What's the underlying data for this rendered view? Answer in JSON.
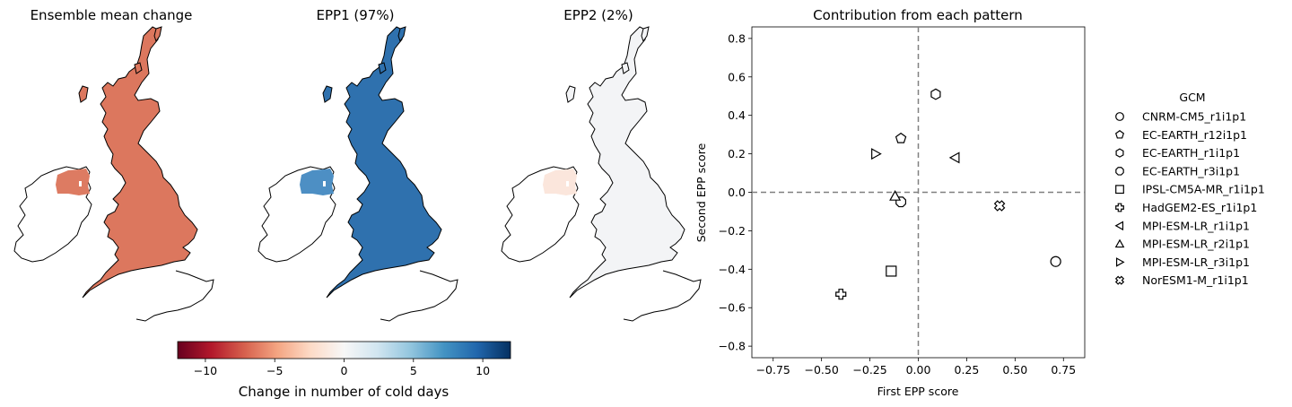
{
  "maps": [
    {
      "title": "Ensemble mean change",
      "ni_fill": "#dd7b62",
      "gb_fill": "#dc775e"
    },
    {
      "title": "EPP1 (97%)",
      "ni_fill": "#4d8fc4",
      "gb_fill": "#2f71ae"
    },
    {
      "title": "EPP2 (2%)",
      "ni_fill": "#fbe6dc",
      "gb_fill": "#f3f4f6"
    }
  ],
  "colorbar": {
    "label": "Change in number of cold days",
    "min": -12,
    "max": 12,
    "ticks": [
      -10,
      -5,
      0,
      5,
      10
    ],
    "tick_labels": [
      "−10",
      "−5",
      "0",
      "5",
      "10"
    ],
    "colormap": "RdBu",
    "stops": [
      "#67001f",
      "#b2182b",
      "#d6604d",
      "#f4a582",
      "#fddbc7",
      "#f7f7f7",
      "#d1e5f0",
      "#92c5de",
      "#4393c3",
      "#2166ac",
      "#053061"
    ]
  },
  "chart_data": {
    "type": "scatter",
    "title": "Contribution from each pattern",
    "xlabel": "First EPP score",
    "ylabel": "Second EPP score",
    "xlim": [
      -0.86,
      0.86
    ],
    "ylim": [
      -0.86,
      0.86
    ],
    "xticks": [
      -0.75,
      -0.5,
      -0.25,
      0.0,
      0.25,
      0.5,
      0.75
    ],
    "xtick_labels": [
      "−0.75",
      "−0.50",
      "−0.25",
      "0.00",
      "0.25",
      "0.50",
      "0.75"
    ],
    "yticks": [
      -0.8,
      -0.6,
      -0.4,
      -0.2,
      0.0,
      0.2,
      0.4,
      0.6,
      0.8
    ],
    "ytick_labels": [
      "−0.8",
      "−0.6",
      "−0.4",
      "−0.2",
      "0.0",
      "0.2",
      "0.4",
      "0.6",
      "0.8"
    ],
    "reference_lines": {
      "x": 0,
      "y": 0,
      "style": "dashed",
      "color": "#808080"
    },
    "grid": false,
    "legend_title": "GCM",
    "legend_position": "right",
    "series": [
      {
        "name": "CNRM-CM5_r1i1p1",
        "marker": "circle",
        "x": 0.71,
        "y": -0.36
      },
      {
        "name": "EC-EARTH_r12i1p1",
        "marker": "pentagon",
        "x": -0.09,
        "y": 0.28
      },
      {
        "name": "EC-EARTH_r1i1p1",
        "marker": "hexagon",
        "x": 0.09,
        "y": 0.51
      },
      {
        "name": "EC-EARTH_r3i1p1",
        "marker": "octagon",
        "x": -0.09,
        "y": -0.05
      },
      {
        "name": "IPSL-CM5A-MR_r1i1p1",
        "marker": "square",
        "x": -0.14,
        "y": -0.41
      },
      {
        "name": "HadGEM2-ES_r1i1p1",
        "marker": "plus",
        "x": -0.4,
        "y": -0.53
      },
      {
        "name": "MPI-ESM-LR_r1i1p1",
        "marker": "triangle-left",
        "x": 0.19,
        "y": 0.18
      },
      {
        "name": "MPI-ESM-LR_r2i1p1",
        "marker": "triangle-up",
        "x": -0.12,
        "y": -0.02
      },
      {
        "name": "MPI-ESM-LR_r3i1p1",
        "marker": "triangle-right",
        "x": -0.22,
        "y": 0.2
      },
      {
        "name": "NorESM1-M_r1i1p1",
        "marker": "x-filled",
        "x": 0.42,
        "y": -0.07
      }
    ]
  }
}
